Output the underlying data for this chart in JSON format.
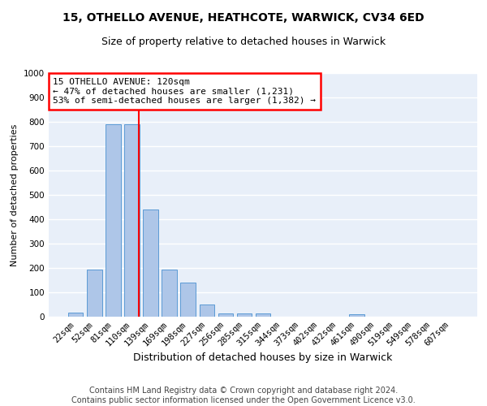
{
  "title1": "15, OTHELLO AVENUE, HEATHCOTE, WARWICK, CV34 6ED",
  "title2": "Size of property relative to detached houses in Warwick",
  "xlabel": "Distribution of detached houses by size in Warwick",
  "ylabel": "Number of detached properties",
  "categories": [
    "22sqm",
    "52sqm",
    "81sqm",
    "110sqm",
    "139sqm",
    "169sqm",
    "198sqm",
    "227sqm",
    "256sqm",
    "285sqm",
    "315sqm",
    "344sqm",
    "373sqm",
    "402sqm",
    "432sqm",
    "461sqm",
    "490sqm",
    "519sqm",
    "549sqm",
    "578sqm",
    "607sqm"
  ],
  "values": [
    18,
    193,
    790,
    790,
    440,
    193,
    140,
    50,
    15,
    12,
    12,
    0,
    0,
    0,
    0,
    10,
    0,
    0,
    0,
    0,
    0
  ],
  "bar_color": "#aec6e8",
  "bar_edge_color": "#5b9bd5",
  "bg_color": "#e8eff9",
  "grid_color": "#ffffff",
  "vline_color": "red",
  "annotation_line1": "15 OTHELLO AVENUE: 120sqm",
  "annotation_line2": "← 47% of detached houses are smaller (1,231)",
  "annotation_line3": "53% of semi-detached houses are larger (1,382) →",
  "annotation_box_color": "white",
  "annotation_box_edgecolor": "red",
  "ylim": [
    0,
    1000
  ],
  "yticks": [
    0,
    100,
    200,
    300,
    400,
    500,
    600,
    700,
    800,
    900,
    1000
  ],
  "vline_pos": 3.38,
  "footer": "Contains HM Land Registry data © Crown copyright and database right 2024.\nContains public sector information licensed under the Open Government Licence v3.0.",
  "title1_fontsize": 10,
  "title2_fontsize": 9,
  "xlabel_fontsize": 9,
  "ylabel_fontsize": 8,
  "tick_fontsize": 7.5,
  "annotation_fontsize": 8,
  "footer_fontsize": 7
}
